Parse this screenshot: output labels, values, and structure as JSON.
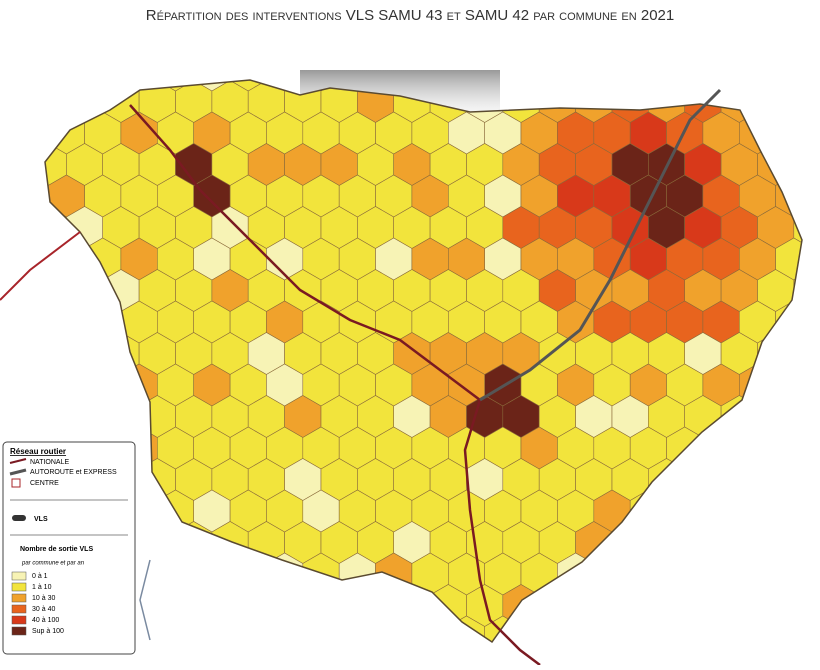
{
  "title": "Répartition des interventions VLS SAMU 43 et SAMU 42 par commune en 2021",
  "legend": {
    "road_title": "Réseau routier",
    "roads": [
      "NATIONALE",
      "AUTOROUTE et EXPRESS",
      "CENTRE"
    ],
    "vehicle": "VLS",
    "classes_title": "Nombre de sortie VLS",
    "classes_subtitle": "par commune et par an",
    "classes": [
      {
        "label": "0 à 1",
        "color": "#f7f3b5"
      },
      {
        "label": "1 à 10",
        "color": "#f2e43c"
      },
      {
        "label": "10 à 30",
        "color": "#f0a22c"
      },
      {
        "label": "30 à 40",
        "color": "#e8641e"
      },
      {
        "label": "40 à 100",
        "color": "#d8391a"
      },
      {
        "label": "Sup à 100",
        "color": "#6b2418"
      }
    ]
  }
}
